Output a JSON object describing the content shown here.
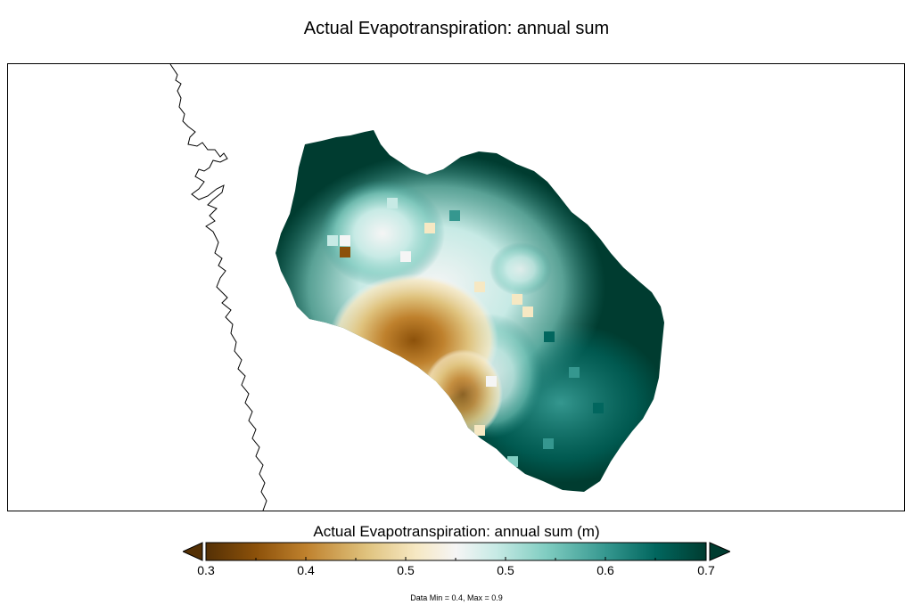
{
  "title": "Actual Evapotranspiration: annual sum",
  "colorbar": {
    "title": "Actual Evapotranspiration: annual sum (m)",
    "ticks": [
      "0.3",
      "0.4",
      "0.5",
      "0.5",
      "0.6",
      "0.7"
    ],
    "range": [
      0.3,
      0.7
    ],
    "extend": "both",
    "colors": [
      "#543005",
      "#8c510a",
      "#bf812d",
      "#dfc27d",
      "#f6e8c3",
      "#f5f5f5",
      "#c7eae5",
      "#80cdc1",
      "#35978f",
      "#01665e",
      "#003c30"
    ]
  },
  "data_range_text": "Data Min = 0.4, Max = 0.9",
  "map": {
    "coastline_color": "#000000",
    "ocean_color": "#ffffff"
  }
}
